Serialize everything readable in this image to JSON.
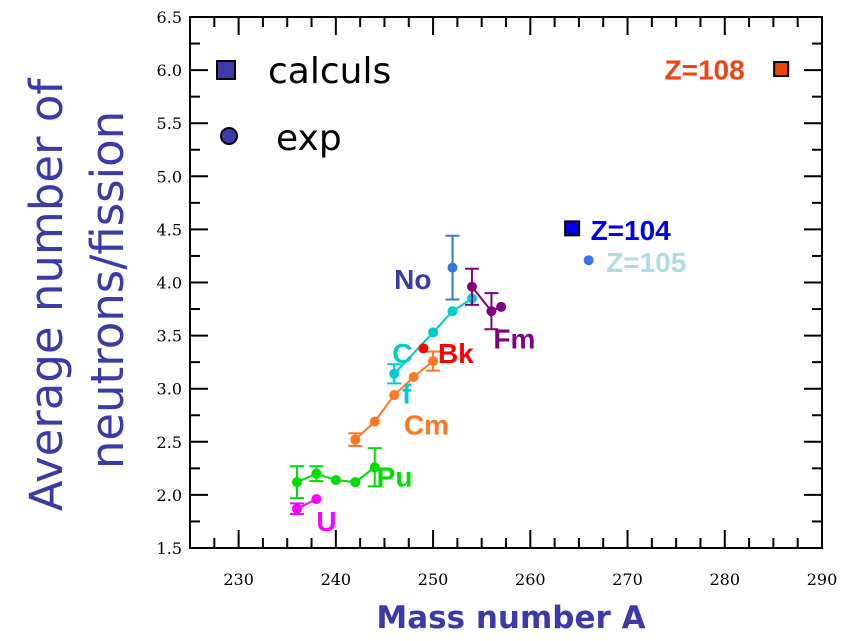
{
  "chart_data": {
    "type": "scatter",
    "title": "",
    "xlabel": "Mass number A",
    "ylabel_line1": "Average number of",
    "ylabel_line2": "neutrons/fission",
    "xlim": [
      225,
      290
    ],
    "ylim": [
      1.5,
      6.5
    ],
    "x_ticks": [
      230,
      240,
      250,
      260,
      270,
      280,
      290
    ],
    "y_ticks": [
      1.5,
      2.0,
      2.5,
      3.0,
      3.5,
      4.0,
      4.5,
      5.0,
      5.5,
      6.0,
      6.5
    ],
    "x_tick_labels": [
      "230",
      "240",
      "250",
      "260",
      "270",
      "280",
      "290"
    ],
    "y_tick_labels": [
      "1.5",
      "2.0",
      "2.5",
      "3.0",
      "3.5",
      "4.0",
      "4.5",
      "5.0",
      "5.5",
      "6.0",
      "6.5"
    ],
    "legend": {
      "position": "top-left",
      "entries": [
        {
          "label": "calculs",
          "marker": "square",
          "color": "#3a3aa8"
        },
        {
          "label": "exp",
          "marker": "circle",
          "color": "#3a3aa8"
        }
      ]
    },
    "series": [
      {
        "name": "U",
        "color": "#ff00ff",
        "connected": true,
        "x": [
          236,
          238
        ],
        "y": [
          1.87,
          1.96
        ],
        "errors": [
          0.05,
          0
        ]
      },
      {
        "name": "Pu",
        "color": "#00dd00",
        "connected": true,
        "x": [
          236,
          238,
          240,
          242,
          244
        ],
        "y": [
          2.12,
          2.2,
          2.14,
          2.12,
          2.26
        ],
        "errors": [
          0.15,
          0.07,
          0,
          0,
          0.18
        ]
      },
      {
        "name": "Cm",
        "color": "#ff7722",
        "connected": true,
        "x": [
          242,
          244,
          246,
          248,
          250
        ],
        "y": [
          2.52,
          2.69,
          2.94,
          3.11,
          3.26
        ],
        "errors": [
          0.06,
          0,
          0,
          0,
          0.09
        ]
      },
      {
        "name": "C",
        "color": "#00cccc",
        "connected": true,
        "x": [
          246,
          250,
          252,
          254
        ],
        "y": [
          3.14,
          3.53,
          3.73,
          3.85
        ],
        "errors": [
          0.09,
          0,
          0,
          0
        ]
      },
      {
        "name": "f",
        "color": "#00cccc",
        "connected": false,
        "x": [],
        "y": [],
        "errors": []
      },
      {
        "name": "Bk",
        "color": "#ff0000",
        "connected": false,
        "x": [
          249
        ],
        "y": [
          3.38
        ],
        "errors": [
          0
        ]
      },
      {
        "name": "Fm",
        "color": "#800080",
        "connected": true,
        "x": [
          254,
          256,
          257
        ],
        "y": [
          3.96,
          3.73,
          3.77
        ],
        "errors": [
          0.17,
          0.17,
          0
        ]
      },
      {
        "name": "No",
        "color": "#3377dd",
        "connected": false,
        "x": [
          252
        ],
        "y": [
          4.14
        ],
        "errors": [
          0.3
        ]
      },
      {
        "name": "Z=105",
        "color": "#3377ee",
        "connected": false,
        "x": [
          266
        ],
        "y": [
          4.21
        ],
        "errors": [
          0
        ]
      }
    ],
    "calculated": [
      {
        "name": "Z=104",
        "x": 264.3,
        "y": 4.51,
        "fill": "#0000ee",
        "stroke": "#000000"
      },
      {
        "name": "Z=108",
        "x": 285.8,
        "y": 6.01,
        "fill": "#ee4411",
        "stroke": "#000000"
      }
    ],
    "labels": [
      {
        "text": "U",
        "color": "#ff00ff",
        "x": 238.0,
        "y": 1.66
      },
      {
        "text": "Pu",
        "color": "#00dd00",
        "x": 244.2,
        "y": 2.08
      },
      {
        "text": "Cm",
        "color": "#ff7722",
        "x": 247.0,
        "y": 2.57
      },
      {
        "text": "C",
        "color": "#00cccc",
        "x": 245.8,
        "y": 3.24
      },
      {
        "text": "f",
        "color": "#00cccc",
        "x": 246.8,
        "y": 2.86
      },
      {
        "text": "Bk",
        "color": "#ff0000",
        "x": 250.5,
        "y": 3.24
      },
      {
        "text": "Fm",
        "color": "#800080",
        "x": 256.2,
        "y": 3.38
      },
      {
        "text": "No",
        "color": "#3a3aa8",
        "x": 246.0,
        "y": 3.94
      },
      {
        "text": "Z=104",
        "color": "#0000ee",
        "x": 266.2,
        "y": 4.4
      },
      {
        "text": "Z=105",
        "color": "#b0dde0",
        "x": 267.8,
        "y": 4.1
      },
      {
        "text": "Z=108",
        "color": "#ee4411",
        "x": 273.8,
        "y": 5.91
      }
    ]
  }
}
